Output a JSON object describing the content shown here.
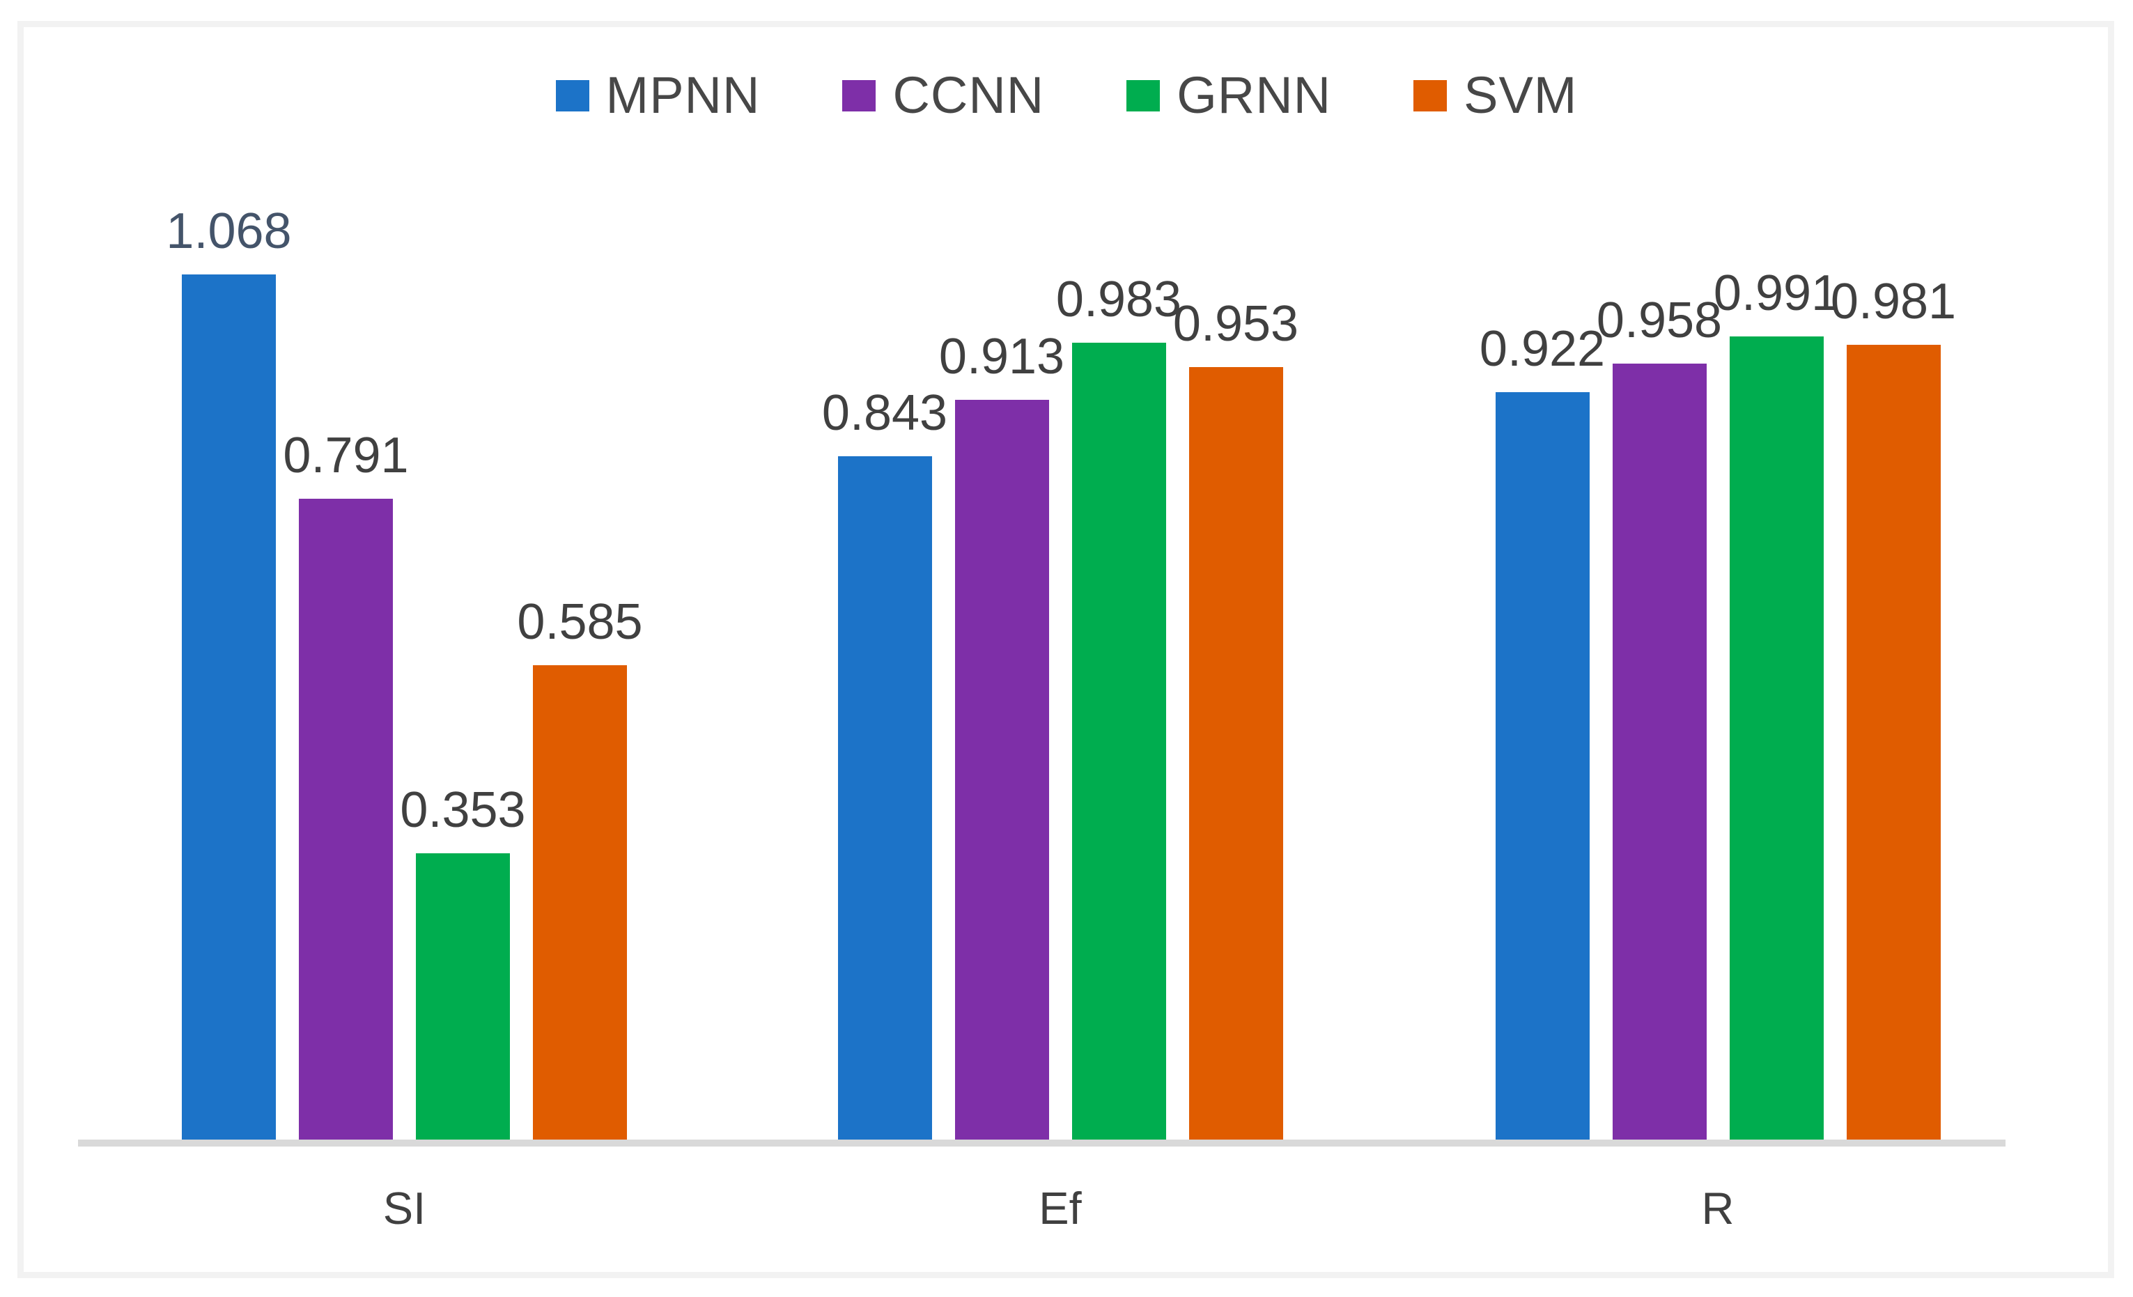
{
  "chart_data": {
    "type": "bar",
    "title": "",
    "xlabel": "",
    "ylabel": "",
    "categories": [
      "SI",
      "Ef",
      "R"
    ],
    "series": [
      {
        "name": "MPNN",
        "color": "#1C73C8",
        "values": [
          1.068,
          0.843,
          0.922
        ],
        "label_colors": [
          "#44546A",
          "#404040",
          "#404040"
        ]
      },
      {
        "name": "CCNN",
        "color": "#7E2FA8",
        "values": [
          0.791,
          0.913,
          0.958
        ]
      },
      {
        "name": "GRNN",
        "color": "#00AD4F",
        "values": [
          0.353,
          0.983,
          0.991
        ]
      },
      {
        "name": "SVM",
        "color": "#E05C00",
        "values": [
          0.585,
          0.953,
          0.981
        ]
      }
    ],
    "ylim": [
      0,
      1.2
    ],
    "grid": false,
    "legend_position": "top-center",
    "value_labels_shown": true,
    "value_label_decimals": 3,
    "default_label_color": "#404040",
    "legend_text_color": "#474747",
    "axis_line_color": "#D9D9D9",
    "frame_border_color": "#F2F2F2",
    "background_color": "#FFFFFF"
  }
}
